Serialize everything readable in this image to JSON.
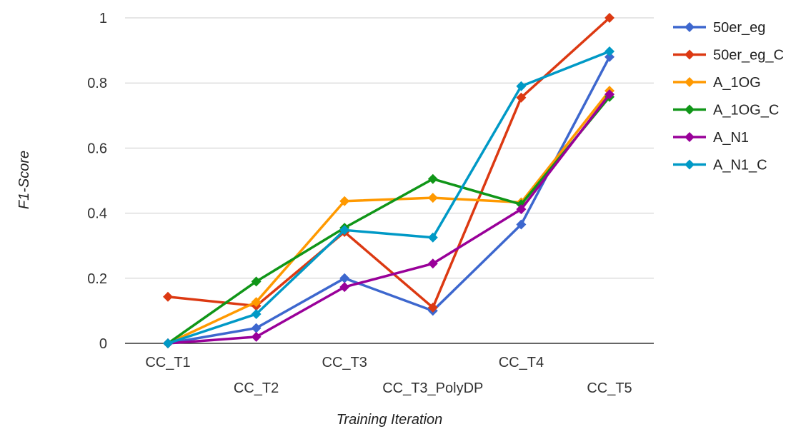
{
  "chart_data": {
    "type": "line",
    "categories": [
      "CC_T1",
      "CC_T2",
      "CC_T3",
      "CC_T3_PolyDP",
      "CC_T4",
      "CC_T5"
    ],
    "xlabel": "Training Iteration",
    "ylabel": "F1-Score",
    "ylim": [
      0,
      1
    ],
    "yticks": [
      "0",
      "0.2",
      "0.4",
      "0.6",
      "0.8",
      "1"
    ],
    "grid": true,
    "legend_position": "right",
    "series": [
      {
        "name": "50er_eg",
        "color": "#3d67ce",
        "values": [
          0.0,
          0.047,
          0.2,
          0.1,
          0.365,
          0.88
        ]
      },
      {
        "name": "50er_eg_C",
        "color": "#dc3912",
        "values": [
          0.143,
          0.115,
          0.342,
          0.11,
          0.755,
          1.0
        ]
      },
      {
        "name": "A_1OG",
        "color": "#ff9900",
        "values": [
          0.0,
          0.127,
          0.437,
          0.447,
          0.433,
          0.776
        ]
      },
      {
        "name": "A_1OG_C",
        "color": "#109618",
        "values": [
          0.0,
          0.19,
          0.355,
          0.505,
          0.427,
          0.757
        ]
      },
      {
        "name": "A_N1",
        "color": "#990099",
        "values": [
          0.0,
          0.02,
          0.173,
          0.245,
          0.412,
          0.765
        ]
      },
      {
        "name": "A_N1_C",
        "color": "#0099c6",
        "values": [
          0.0,
          0.09,
          0.348,
          0.325,
          0.79,
          0.897
        ]
      }
    ]
  }
}
